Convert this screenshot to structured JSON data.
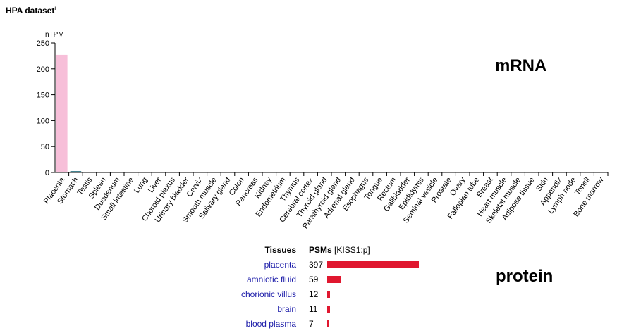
{
  "header": {
    "title": "HPA dataset",
    "info_marker": "i"
  },
  "labels": {
    "mrna": "mRNA",
    "protein": "protein"
  },
  "chart_data": [
    {
      "type": "bar",
      "ylabel": "nTPM",
      "ylim": [
        0,
        250
      ],
      "yticks": [
        0,
        50,
        100,
        150,
        200,
        250
      ],
      "categories": [
        "Placenta",
        "Stomach",
        "Testis",
        "Spleen",
        "Duodenum",
        "Small intestine",
        "Lung",
        "Liver",
        "Choroid plexus",
        "Urinary bladder",
        "Cervix",
        "Smooth muscle",
        "Salivary gland",
        "Colon",
        "Pancreas",
        "Kidney",
        "Endometrium",
        "Thymus",
        "Cerebral cortex",
        "Thyroid gland",
        "Parathyroid gland",
        "Adrenal gland",
        "Esophagus",
        "Tongue",
        "Rectum",
        "Gallbladder",
        "Epididymis",
        "Seminal vesicle",
        "Prostate",
        "Ovary",
        "Fallopian tube",
        "Breast",
        "Heart muscle",
        "Skeletal muscle",
        "Adipose tissue",
        "Skin",
        "Appendix",
        "Lymph node",
        "Tonsil",
        "Bone marrow"
      ],
      "values": [
        227,
        2.5,
        1.0,
        1.2,
        1.0,
        1.0,
        0.4,
        0.1,
        0.1,
        0.1,
        0,
        0,
        0,
        0,
        0,
        0,
        0,
        0,
        0,
        0,
        0,
        0,
        0,
        0,
        0,
        0,
        0,
        0,
        0,
        0,
        0,
        0,
        0,
        0,
        0,
        0,
        0,
        0,
        0,
        0
      ],
      "colors": [
        "#f7bfd9",
        "#1e6b7a",
        "#1e6b7a",
        "#e06060",
        "#1e6b7a",
        "#1e6b7a",
        "#1e6b7a",
        "#1e6b7a",
        "#999999",
        "#999999",
        "#999999",
        "#999999",
        "#999999",
        "#999999",
        "#999999",
        "#999999",
        "#999999",
        "#999999",
        "#999999",
        "#999999",
        "#999999",
        "#999999",
        "#999999",
        "#999999",
        "#999999",
        "#999999",
        "#999999",
        "#999999",
        "#999999",
        "#999999",
        "#999999",
        "#999999",
        "#999999",
        "#999999",
        "#999999",
        "#999999",
        "#999999",
        "#999999",
        "#999999",
        "#999999"
      ]
    },
    {
      "type": "bar",
      "orientation": "horizontal",
      "column_headers": {
        "tissue": "Tissues",
        "value": "PSMs",
        "value_note": "[KISS1:p]"
      },
      "categories": [
        "placenta",
        "amniotic fluid",
        "chorionic villus",
        "brain",
        "blood plasma"
      ],
      "values": [
        397,
        59,
        12,
        11,
        7
      ],
      "color": "#e0172f"
    }
  ]
}
